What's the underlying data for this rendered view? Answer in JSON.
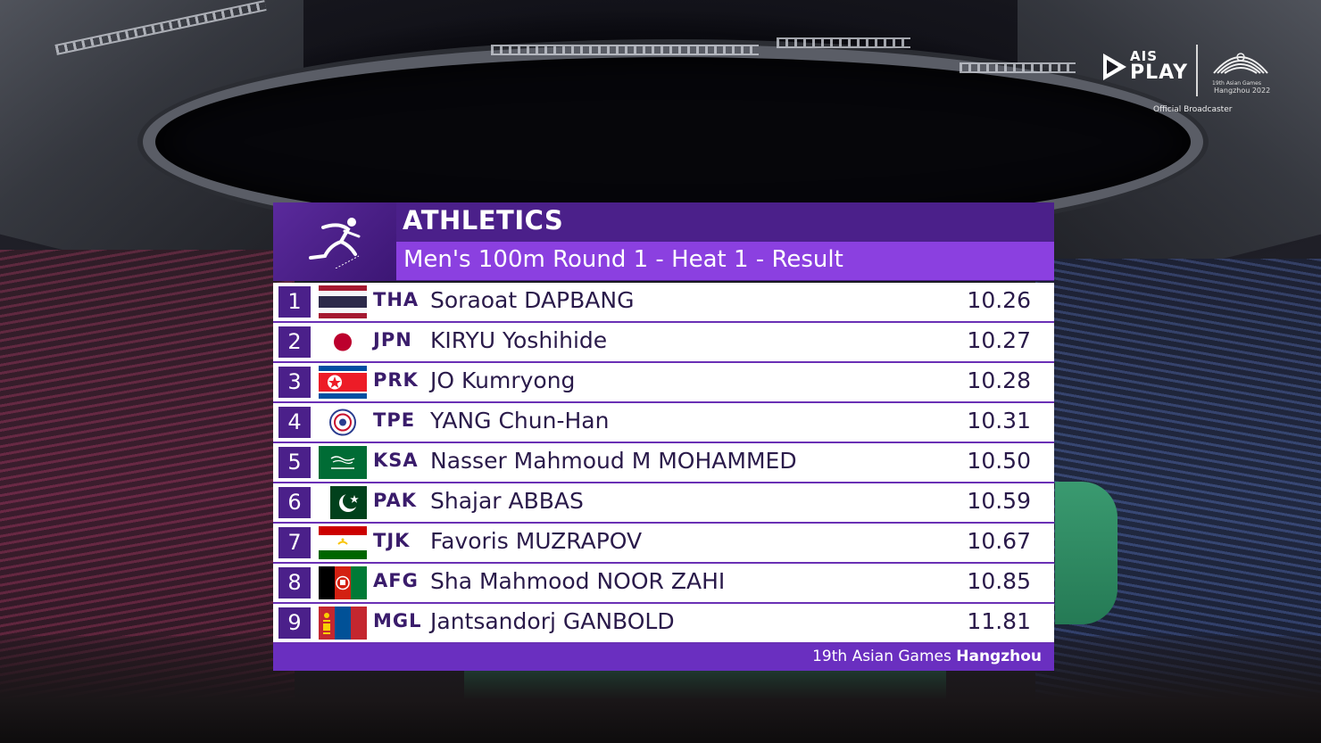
{
  "broadcaster": {
    "ais_label": "AIS",
    "play_label": "PLAY",
    "games_line1": "19th Asian Games",
    "games_line2": "Hangzhou 2022",
    "official_label": "Official Broadcaster"
  },
  "graphic": {
    "sport": "ATHLETICS",
    "event": "Men's 100m Round 1 - Heat 1 - Result",
    "sport_icon": "runner-icon",
    "accent_dark": "#4b208a",
    "accent_light": "#8b40e0"
  },
  "results": [
    {
      "rank": "1",
      "code": "THA",
      "name": "Soraoat DAPBANG",
      "time": "10.26",
      "flag_icon": "thailand-flag-icon"
    },
    {
      "rank": "2",
      "code": "JPN",
      "name": "KIRYU Yoshihide",
      "time": "10.27",
      "flag_icon": "japan-flag-icon"
    },
    {
      "rank": "3",
      "code": "PRK",
      "name": "JO Kumryong",
      "time": "10.28",
      "flag_icon": "north-korea-flag-icon"
    },
    {
      "rank": "4",
      "code": "TPE",
      "name": "YANG Chun-Han",
      "time": "10.31",
      "flag_icon": "chinese-taipei-flag-icon"
    },
    {
      "rank": "5",
      "code": "KSA",
      "name": "Nasser Mahmoud M MOHAMMED",
      "time": "10.50",
      "flag_icon": "saudi-arabia-flag-icon"
    },
    {
      "rank": "6",
      "code": "PAK",
      "name": "Shajar ABBAS",
      "time": "10.59",
      "flag_icon": "pakistan-flag-icon"
    },
    {
      "rank": "7",
      "code": "TJK",
      "name": "Favoris MUZRAPOV",
      "time": "10.67",
      "flag_icon": "tajikistan-flag-icon"
    },
    {
      "rank": "8",
      "code": "AFG",
      "name": "Sha Mahmood NOOR ZAHI",
      "time": "10.85",
      "flag_icon": "afghanistan-flag-icon"
    },
    {
      "rank": "9",
      "code": "MGL",
      "name": "Jantsandorj GANBOLD",
      "time": "11.81",
      "flag_icon": "mongolia-flag-icon"
    }
  ],
  "footer": {
    "prefix": "19th Asian Games ",
    "city": "Hangzhou"
  }
}
